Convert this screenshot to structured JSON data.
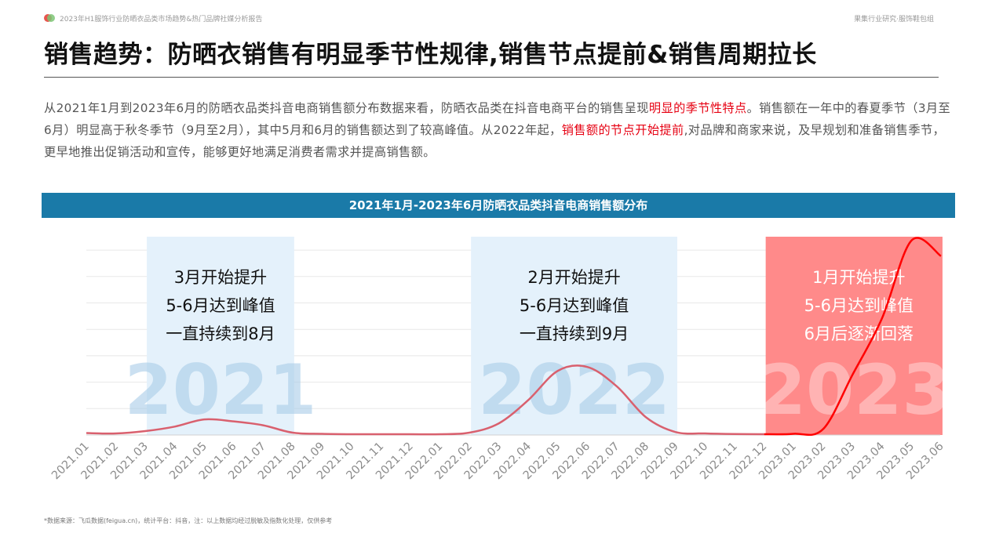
{
  "header": {
    "report_title": "2023年H1服饰行业防晒衣品类市场趋势&热门品牌社媒分析报告",
    "brand": "果集行业研究·服饰鞋包组"
  },
  "title": "销售趋势：防晒衣销售有明显季节性规律,销售节点提前&销售周期拉长",
  "intro": {
    "p1": "从2021年1月到2023年6月的防晒衣品类抖音电商销售额分布数据来看，防晒衣品类在抖音电商平台的销售呈现",
    "hl1": "明显的季节性特点",
    "p2": "。销售额在一年中的春夏季节（3月至6月）明显高于秋冬季节（9月至2月），其中5月和6月的销售额达到了较高峰值。从2022年起，",
    "hl2": "销售额的节点开始提前",
    "p3": ",对品牌和商家来说，及早规划和准备销售季节，更早地推出促销活动和宣传，能够更好地满足消费者需求并提高销售额。"
  },
  "colors": {
    "accent_red": "#e60012",
    "bar_blue": "#1a7aa8",
    "band_light": "#e4f1fb",
    "band_red": "#ff8a8a",
    "line_2021_2022": "#d9606e",
    "line_2023": "#ff0000"
  },
  "chart_data": {
    "type": "line",
    "title": "2021年1月-2023年6月防晒衣品类抖音电商销售额分布",
    "x": [
      "2021.01",
      "2021.02",
      "2021.03",
      "2021.04",
      "2021.05",
      "2021.06",
      "2021.07",
      "2021.08",
      "2021.09",
      "2021.10",
      "2021.11",
      "2021.12",
      "2022.01",
      "2022.02",
      "2022.03",
      "2022.04",
      "2022.05",
      "2022.06",
      "2022.07",
      "2022.08",
      "2022.09",
      "2022.10",
      "2022.11",
      "2022.12",
      "2023.01",
      "2023.02",
      "2023.03",
      "2023.04",
      "2023.05",
      "2023.06"
    ],
    "series": [
      {
        "values": [
          1.0,
          0.8,
          2.0,
          4.3,
          8.0,
          7.0,
          5.0,
          1.2,
          0.6,
          0.4,
          0.4,
          0.4,
          0.4,
          1.2,
          6.0,
          18.0,
          33.0,
          35.0,
          25.0,
          9.0,
          1.5,
          0.8,
          0.5,
          0.4,
          0.6,
          3.0,
          31.0,
          60.0,
          100.0,
          92.0
        ]
      }
    ],
    "highlight_periods": [
      {
        "start": "2021.03",
        "end": "2021.08",
        "year_label": "2021",
        "annotations": [
          "3月开始提升",
          "5-6月达到峰值",
          "一直持续到8月"
        ]
      },
      {
        "start": "2022.02",
        "end": "2022.09",
        "year_label": "2022",
        "annotations": [
          "2月开始提升",
          "5-6月达到峰值",
          "一直持续到9月"
        ]
      },
      {
        "start": "2022.12",
        "end": "2023.06",
        "year_label": "2023",
        "annotations": [
          "1月开始提升",
          "5-6月达到峰值",
          "6月后逐渐回落"
        ]
      }
    ],
    "xlabel": "",
    "ylabel": "",
    "ylim": [
      0,
      108
    ],
    "grid": true
  },
  "footnote": "*数据来源：飞瓜数据(feigua.cn)，统计平台：抖音，注：以上数据均经过脱敏及指数化处理，仅供参考"
}
